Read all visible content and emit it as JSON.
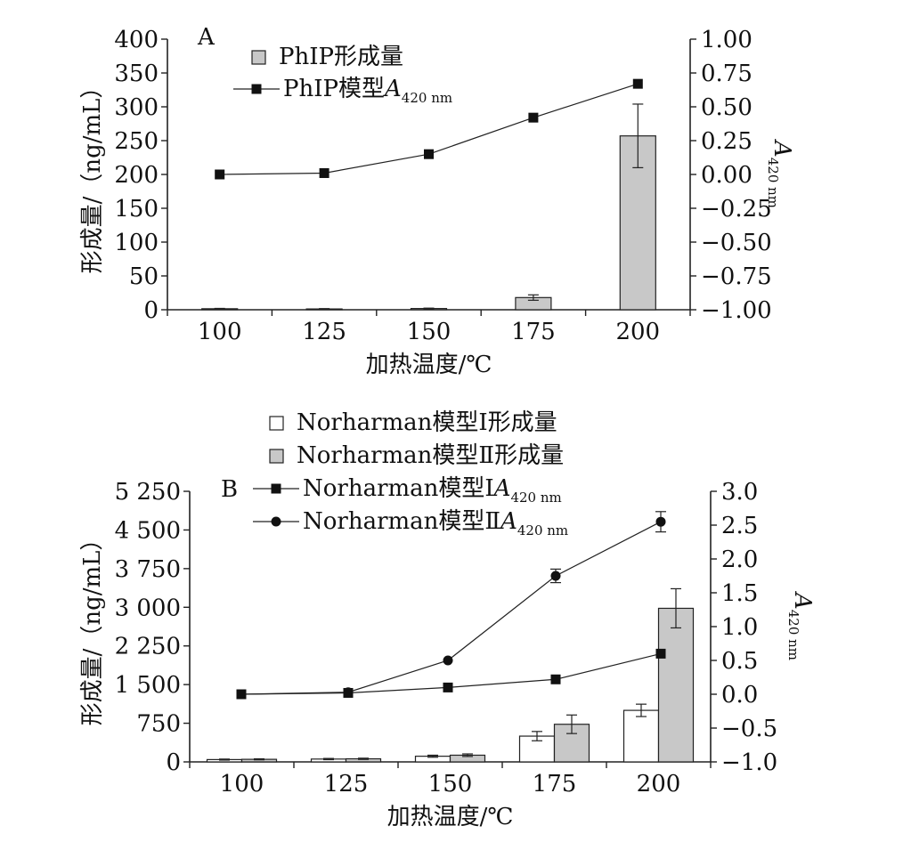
{
  "chart_data": [
    {
      "panel": "A",
      "type": "bar+line",
      "categories": [
        "100",
        "125",
        "150",
        "175",
        "200"
      ],
      "xlabel": "加热温度/℃",
      "ylabel": "形成量/（ng/mL）",
      "ylabel_right_main": "A",
      "ylabel_right_sub": "420 nm",
      "ylim": [
        0,
        400
      ],
      "yticks": [
        "0",
        "50",
        "100",
        "150",
        "200",
        "250",
        "300",
        "350",
        "400"
      ],
      "y2lim": [
        -1.0,
        1.0
      ],
      "y2ticks": [
        "−1.00",
        "−0.75",
        "−0.50",
        "−0.25",
        "0.00",
        "0.25",
        "0.50",
        "0.75",
        "1.00"
      ],
      "bars": [
        {
          "name": "PhIP形成量",
          "color": "#c8c8c8",
          "values": [
            1.5,
            1.2,
            1.8,
            18,
            257
          ],
          "errors": [
            0.5,
            0.5,
            0.6,
            4,
            47
          ]
        }
      ],
      "lines": [
        {
          "name_main": "PhIP模型",
          "name_sym": "A",
          "name_sub": "420 nm",
          "marker": "square",
          "values": [
            0.0,
            0.01,
            0.15,
            0.42,
            0.67
          ],
          "errors": [
            0,
            0,
            0,
            0,
            0
          ]
        }
      ],
      "legend_position": "top-left"
    },
    {
      "panel": "B",
      "type": "bar+line",
      "categories": [
        "100",
        "125",
        "150",
        "175",
        "200"
      ],
      "xlabel": "加热温度/℃",
      "ylabel": "形成量/（ng/mL）",
      "ylabel_right_main": "A",
      "ylabel_right_sub": "420 nm",
      "ylim": [
        0,
        5250
      ],
      "yticks": [
        "0",
        "750",
        "1 500",
        "2 250",
        "3 000",
        "3 750",
        "4 500",
        "5 250"
      ],
      "y2lim": [
        -1.0,
        3.0
      ],
      "y2ticks": [
        "−1.0",
        "−0.5",
        "0.0",
        "0.5",
        "1.0",
        "1.5",
        "2.0",
        "2.5",
        "3.0"
      ],
      "bars": [
        {
          "name": "Norharman模型Ⅰ形成量",
          "color": "#ffffff",
          "values": [
            45,
            55,
            110,
            500,
            1000
          ],
          "errors": [
            10,
            12,
            20,
            90,
            120
          ]
        },
        {
          "name": "Norharman模型Ⅱ形成量",
          "color": "#c8c8c8",
          "values": [
            50,
            60,
            130,
            730,
            2980
          ],
          "errors": [
            10,
            12,
            25,
            180,
            380
          ]
        }
      ],
      "lines": [
        {
          "name_main": "Norharman模型Ⅰ",
          "name_sym": "A",
          "name_sub": "420 nm",
          "marker": "square",
          "values": [
            0.0,
            0.02,
            0.1,
            0.22,
            0.6
          ],
          "errors": [
            0,
            0,
            0,
            0,
            0
          ]
        },
        {
          "name_main": "Norharman模型Ⅱ",
          "name_sym": "A",
          "name_sub": "420 nm",
          "marker": "circle",
          "values": [
            0.0,
            0.03,
            0.5,
            1.75,
            2.55
          ],
          "errors": [
            0,
            0,
            0,
            0.1,
            0.15
          ]
        }
      ],
      "legend_position": "top"
    }
  ]
}
